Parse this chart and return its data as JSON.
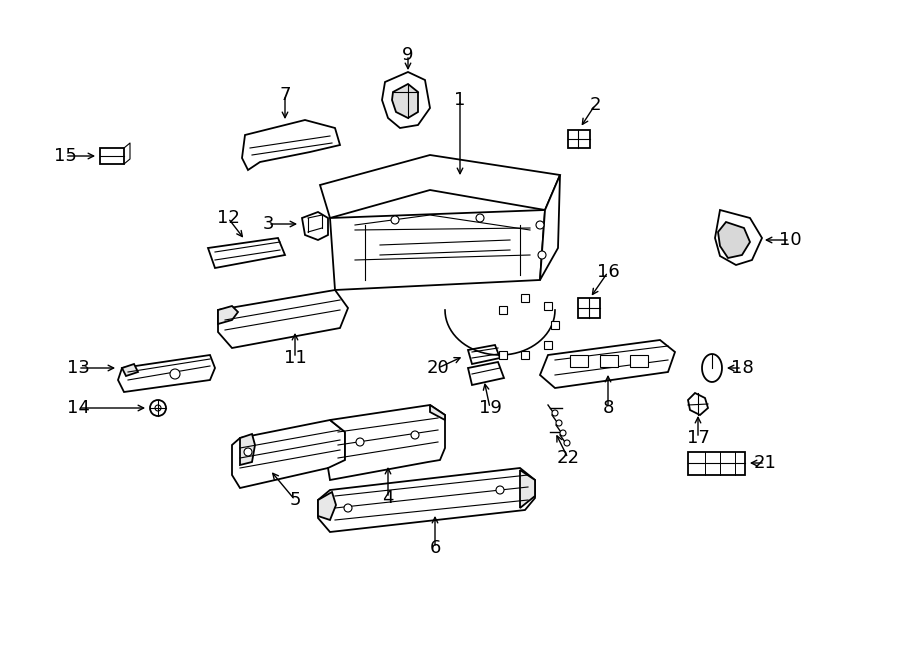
{
  "bg_color": "#ffffff",
  "line_color": "#000000",
  "fig_width": 9.0,
  "fig_height": 6.61,
  "dpi": 100,
  "label_fontsize": 13,
  "arrow_lw": 1.0
}
